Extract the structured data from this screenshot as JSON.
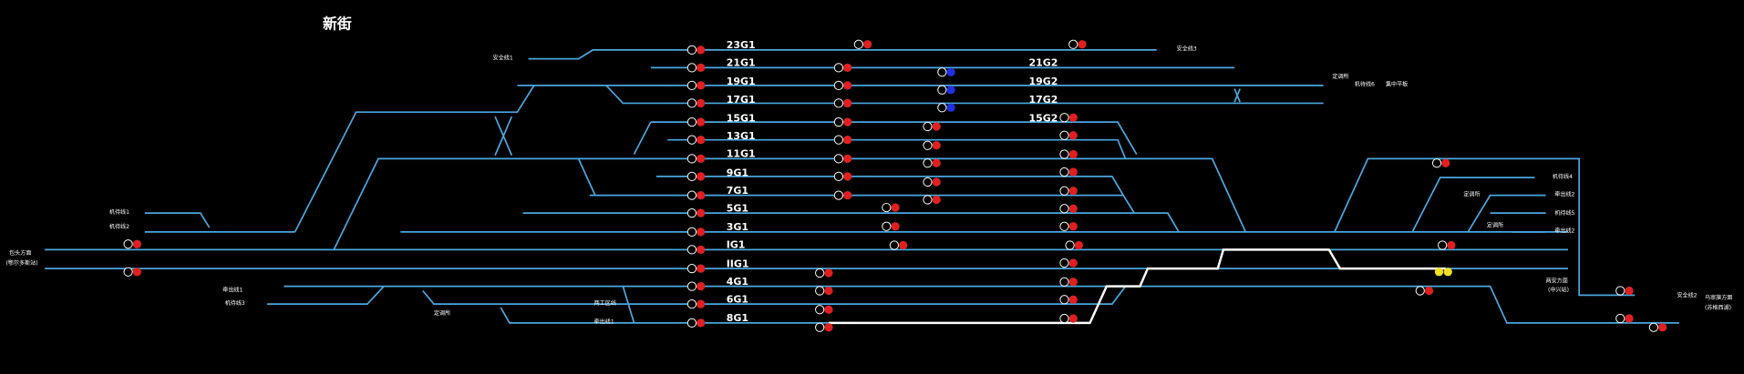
{
  "title": "新街",
  "tracks": [
    "23G1",
    "21G1",
    "21G2",
    "19G1",
    "19G2",
    "17G1",
    "17G2",
    "15G1",
    "15G2",
    "13G1",
    "11G1",
    "9G1",
    "7G1",
    "5G1",
    "3G1",
    "IG1",
    "IIG1",
    "4G1",
    "6G1",
    "8G1"
  ],
  "labels": [
    "安全线1",
    "安全线3",
    "定调所",
    "机待线6",
    "集中平板",
    "机待线1",
    "机待线2",
    "包头方面",
    "(鄂尔多斯站)",
    "牵出线1",
    "机待线3",
    "定调所",
    "两工区线",
    "牵出线1",
    "机待线4",
    "牵出线2",
    "定调所",
    "机待线5",
    "定调所",
    "牵出线2",
    "两安方面",
    "(中兴站)",
    "安全线2",
    "乌审旗方面",
    "(苏格西湖)"
  ]
}
